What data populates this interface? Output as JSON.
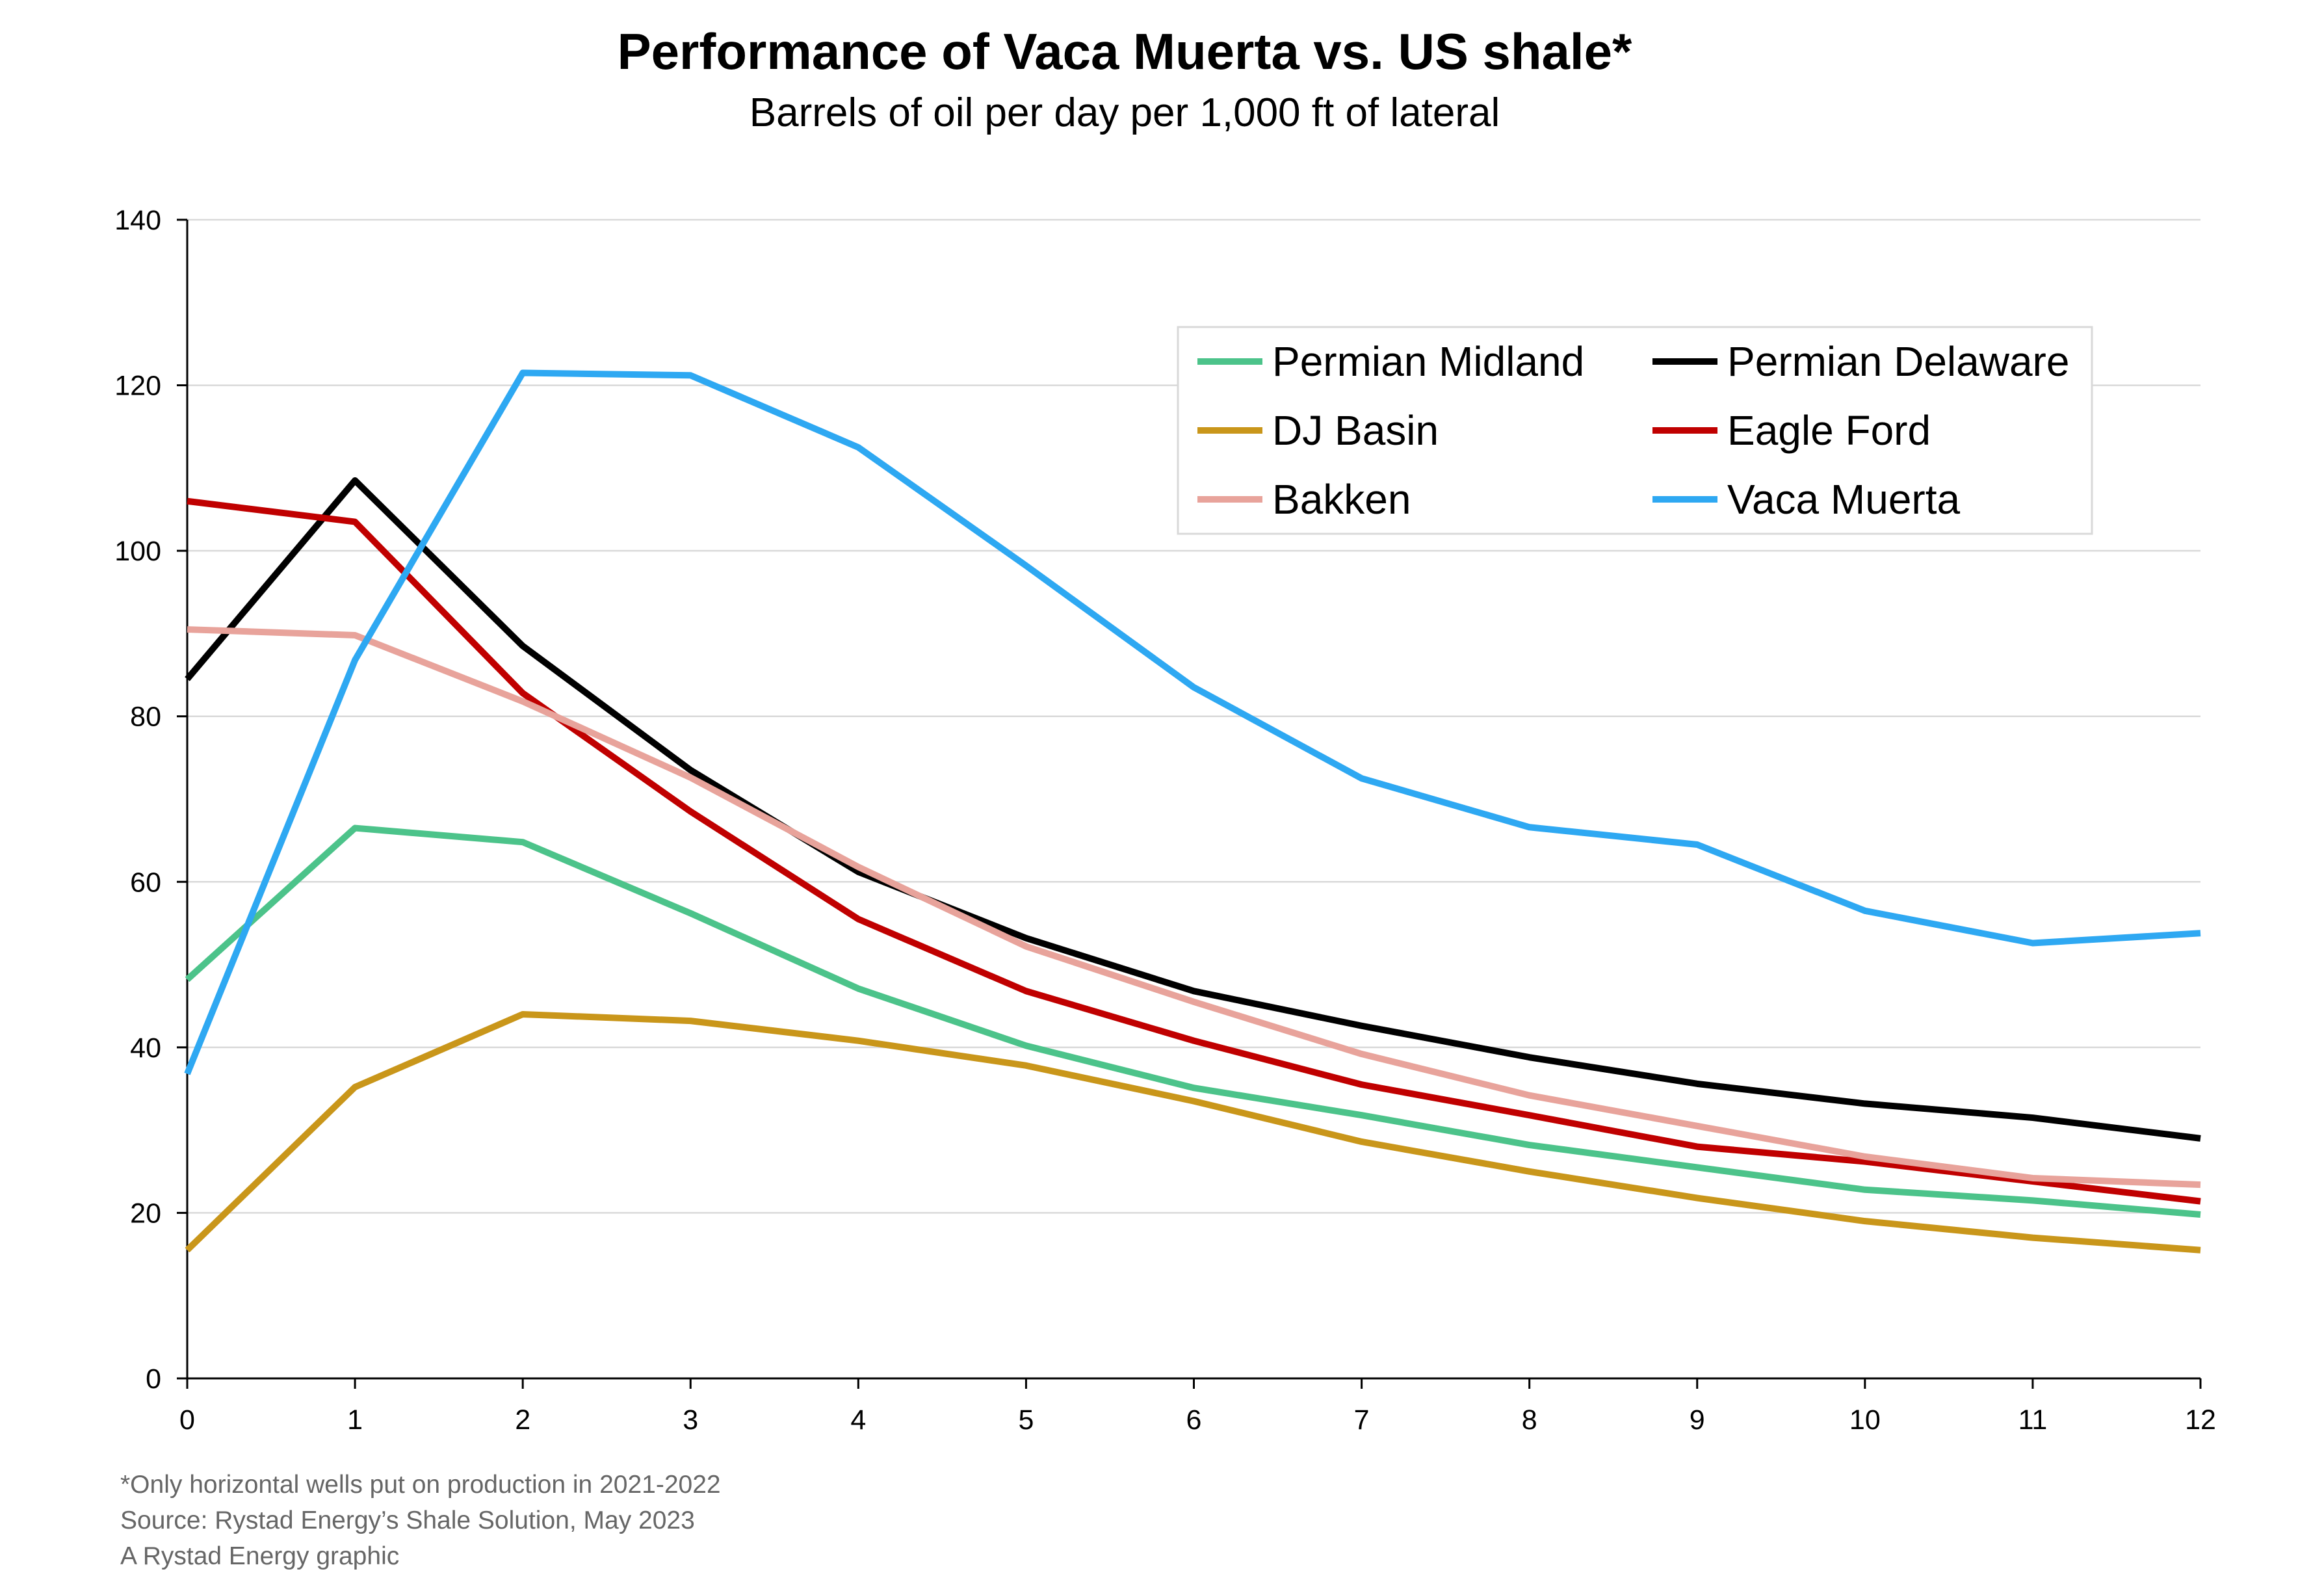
{
  "chart_data": {
    "type": "line",
    "title": "Performance of Vaca Muerta vs. US shale*",
    "subtitle": "Barrels of oil per day per 1,000 ft of lateral",
    "xlabel": "",
    "ylabel": "",
    "x": [
      0,
      1,
      2,
      3,
      4,
      5,
      6,
      7,
      8,
      9,
      10,
      11,
      12
    ],
    "xlim": [
      0,
      12
    ],
    "ylim": [
      0,
      140
    ],
    "yticks": [
      0,
      20,
      40,
      60,
      80,
      100,
      120,
      140
    ],
    "grid": "horizontal",
    "legend_position": "top-right",
    "series": [
      {
        "name": "Permian Midland",
        "color": "#4CC38A",
        "values": [
          48.2,
          66.5,
          64.8,
          56.2,
          47.1,
          40.2,
          35.1,
          31.8,
          28.2,
          25.5,
          22.8,
          21.5,
          19.8
        ]
      },
      {
        "name": "Permian Delaware",
        "color": "#000000",
        "values": [
          84.5,
          108.5,
          88.5,
          73.5,
          61.2,
          53.2,
          46.8,
          42.6,
          38.8,
          35.6,
          33.2,
          31.5,
          29.0
        ]
      },
      {
        "name": "DJ Basin",
        "color": "#C9961A",
        "values": [
          15.5,
          35.2,
          44.0,
          43.2,
          40.8,
          37.8,
          33.5,
          28.6,
          25.0,
          21.8,
          19.0,
          17.0,
          15.5
        ]
      },
      {
        "name": "Eagle Ford",
        "color": "#C00000",
        "values": [
          106.0,
          103.5,
          82.8,
          68.5,
          55.5,
          46.8,
          40.8,
          35.5,
          31.8,
          28.0,
          26.2,
          23.8,
          21.4
        ]
      },
      {
        "name": "Bakken",
        "color": "#E8A39B",
        "values": [
          90.5,
          89.8,
          81.8,
          72.6,
          61.8,
          52.2,
          45.5,
          39.2,
          34.2,
          30.5,
          26.8,
          24.2,
          23.4
        ]
      },
      {
        "name": "Vaca Muerta",
        "color": "#2EA8F2",
        "values": [
          36.8,
          86.8,
          121.5,
          121.2,
          112.5,
          98.2,
          83.5,
          72.5,
          66.6,
          64.5,
          56.5,
          52.6,
          53.8
        ]
      }
    ]
  },
  "footnotes": {
    "line1": "*Only horizontal wells put on production in 2021-2022",
    "line2": "Source: Rystad Energy’s Shale Solution, May 2023",
    "line3": "A Rystad Energy graphic"
  }
}
